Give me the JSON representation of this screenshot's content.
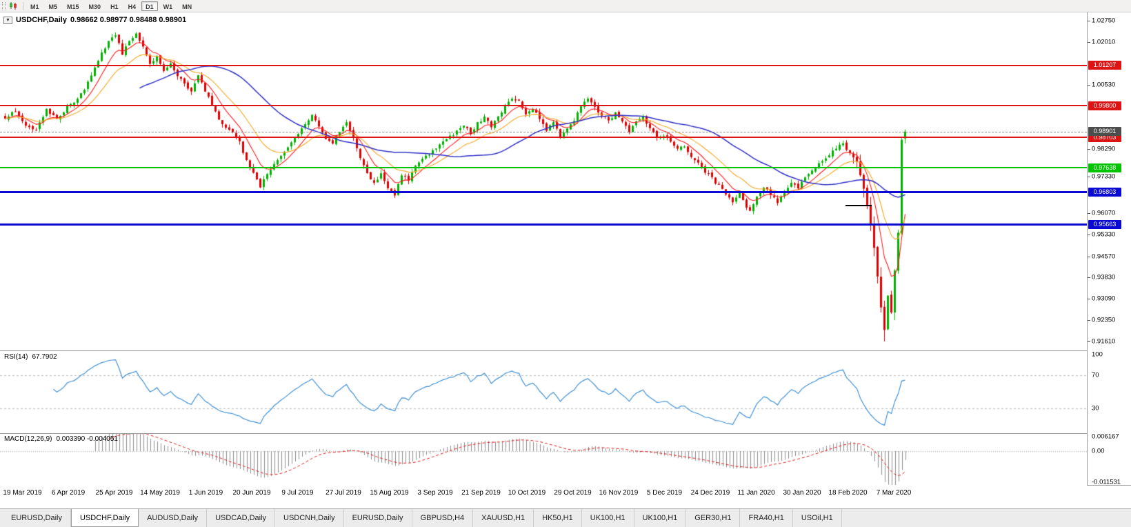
{
  "toolbar": {
    "timeframes": [
      "M1",
      "M5",
      "M15",
      "M30",
      "H1",
      "H4",
      "D1",
      "W1",
      "MN"
    ],
    "active": "D1",
    "icon": "chart-icon"
  },
  "chart_header": {
    "collapse_icon": "▼",
    "symbol": "USDCHF,Daily",
    "ohlc": "0.98662 0.98977 0.98488 0.98901"
  },
  "rsi_header": {
    "name": "RSI(14)",
    "value": "67.7902"
  },
  "macd_header": {
    "name": "MACD(12,26,9)",
    "values": "0.003390 -0.004051"
  },
  "chart_data": {
    "type": "candlestick",
    "symbol": "USDCHF",
    "period": "Daily",
    "title_ohlc": {
      "open": 0.98662,
      "high": 0.98977,
      "low": 0.98488,
      "close": 0.98901
    },
    "n": 262,
    "price_range": {
      "min": 0.913,
      "max": 1.0304
    },
    "extremes": {
      "high": 1.0235,
      "low": 0.9161
    },
    "colors": {
      "up": "#00b200",
      "down": "#e00000",
      "ma_fast": "#ff1a1a",
      "ma_mid": "#f5a623",
      "ma_slow": "#2e2ec8"
    },
    "axis_ticks": [
      "1.02750",
      "1.02010",
      "1.00530",
      "0.98290",
      "0.97330",
      "0.96070",
      "0.95330",
      "0.94570",
      "0.93830",
      "0.93090",
      "0.92350",
      "0.91610"
    ],
    "horizontal_levels": [
      {
        "price": 1.01207,
        "label": "1.01207",
        "color": "#dc1414",
        "thickness": 2,
        "kind": "resistance"
      },
      {
        "price": 0.998,
        "label": "0.99800",
        "color": "#dc1414",
        "thickness": 2,
        "kind": "resistance"
      },
      {
        "price": 0.98703,
        "label": "0.98703",
        "color": "#dc1414",
        "thickness": 2,
        "kind": "resistance"
      },
      {
        "price": 0.97638,
        "label": "0.97638",
        "color": "#00c400",
        "thickness": 2,
        "kind": "support"
      },
      {
        "price": 0.96803,
        "label": "0.96803",
        "color": "#0a0ad2",
        "thickness": 3,
        "kind": "support"
      },
      {
        "price": 0.95663,
        "label": "0.95663",
        "color": "#0a0ad2",
        "thickness": 3,
        "kind": "support"
      }
    ],
    "current_price": {
      "price": 0.98901,
      "label": "0.98901",
      "color": "#4d4d4d"
    },
    "drawn_segment": {
      "price": 0.9633,
      "i1": 244,
      "i2": 251,
      "color": "#000000"
    },
    "moving_averages": [
      {
        "type": "ema",
        "period": 8
      },
      {
        "type": "ema",
        "period": 18
      },
      {
        "type": "sma",
        "period": 40
      }
    ],
    "rsi": {
      "period": 14,
      "current": 67.7902,
      "overbought": 70,
      "oversold": 30,
      "scale_labels": [
        "100",
        "70",
        "30"
      ],
      "color": "#3f8fd4"
    },
    "macd": {
      "params": "12,26,9",
      "main": 0.00339,
      "signal": -0.004051,
      "scale_max": 0.006167,
      "scale_min": -0.011531,
      "scale_labels": [
        "0.006167",
        "0.00",
        "-0.011531"
      ],
      "hist_color": "#8c8c8c",
      "signal_color": "#dc1414"
    },
    "dates": [
      "19 Mar 2019",
      "6 Apr 2019",
      "25 Apr 2019",
      "14 May 2019",
      "1 Jun 2019",
      "20 Jun 2019",
      "9 Jul 2019",
      "27 Jul 2019",
      "15 Aug 2019",
      "3 Sep 2019",
      "21 Sep 2019",
      "10 Oct 2019",
      "29 Oct 2019",
      "16 Nov 2019",
      "5 Dec 2019",
      "24 Dec 2019",
      "11 Jan 2020",
      "30 Jan 2020",
      "18 Feb 2020",
      "7 Mar 2020"
    ],
    "close_anchors": [
      [
        0,
        0.9935
      ],
      [
        3,
        0.9962
      ],
      [
        6,
        0.9915
      ],
      [
        9,
        0.9893
      ],
      [
        12,
        0.9968
      ],
      [
        15,
        0.9932
      ],
      [
        18,
        0.9975
      ],
      [
        21,
        1.0005
      ],
      [
        24,
        1.0058
      ],
      [
        27,
        1.0138
      ],
      [
        30,
        1.0205
      ],
      [
        32,
        1.0228
      ],
      [
        34,
        1.016
      ],
      [
        36,
        1.0205
      ],
      [
        38,
        1.0228
      ],
      [
        40,
        1.0182
      ],
      [
        42,
        1.012
      ],
      [
        44,
        1.0148
      ],
      [
        46,
        1.0095
      ],
      [
        48,
        1.0128
      ],
      [
        51,
        1.0068
      ],
      [
        54,
        1.0032
      ],
      [
        56,
        1.0088
      ],
      [
        58,
        1.003
      ],
      [
        60,
        0.9988
      ],
      [
        62,
        0.9928
      ],
      [
        64,
        0.9898
      ],
      [
        66,
        0.9888
      ],
      [
        68,
        0.9852
      ],
      [
        70,
        0.979
      ],
      [
        72,
        0.9748
      ],
      [
        74,
        0.97
      ],
      [
        76,
        0.9745
      ],
      [
        78,
        0.9775
      ],
      [
        81,
        0.982
      ],
      [
        84,
        0.9872
      ],
      [
        87,
        0.9918
      ],
      [
        89,
        0.9948
      ],
      [
        91,
        0.9905
      ],
      [
        93,
        0.9868
      ],
      [
        95,
        0.9852
      ],
      [
        97,
        0.9892
      ],
      [
        99,
        0.9922
      ],
      [
        101,
        0.9868
      ],
      [
        103,
        0.9798
      ],
      [
        105,
        0.9742
      ],
      [
        107,
        0.9712
      ],
      [
        109,
        0.9742
      ],
      [
        111,
        0.969
      ],
      [
        113,
        0.9668
      ],
      [
        115,
        0.9742
      ],
      [
        117,
        0.9722
      ],
      [
        119,
        0.9772
      ],
      [
        121,
        0.9792
      ],
      [
        124,
        0.9822
      ],
      [
        127,
        0.9856
      ],
      [
        130,
        0.9882
      ],
      [
        133,
        0.9912
      ],
      [
        135,
        0.9882
      ],
      [
        137,
        0.9922
      ],
      [
        139,
        0.9938
      ],
      [
        141,
        0.9908
      ],
      [
        143,
        0.9938
      ],
      [
        145,
        0.9978
      ],
      [
        147,
        1.0002
      ],
      [
        149,
        0.9992
      ],
      [
        151,
        0.9952
      ],
      [
        153,
        0.9968
      ],
      [
        155,
        0.9932
      ],
      [
        157,
        0.9892
      ],
      [
        159,
        0.9922
      ],
      [
        161,
        0.9872
      ],
      [
        163,
        0.9898
      ],
      [
        165,
        0.9928
      ],
      [
        167,
        0.9978
      ],
      [
        169,
        1.0
      ],
      [
        171,
        0.9972
      ],
      [
        173,
        0.9948
      ],
      [
        175,
        0.9925
      ],
      [
        177,
        0.9952
      ],
      [
        179,
        0.9922
      ],
      [
        181,
        0.9892
      ],
      [
        183,
        0.9922
      ],
      [
        185,
        0.994
      ],
      [
        187,
        0.9905
      ],
      [
        189,
        0.9872
      ],
      [
        191,
        0.9878
      ],
      [
        193,
        0.9858
      ],
      [
        195,
        0.9828
      ],
      [
        197,
        0.9842
      ],
      [
        199,
        0.98
      ],
      [
        201,
        0.9782
      ],
      [
        203,
        0.9752
      ],
      [
        205,
        0.9728
      ],
      [
        207,
        0.97
      ],
      [
        209,
        0.9672
      ],
      [
        211,
        0.9648
      ],
      [
        213,
        0.968
      ],
      [
        215,
        0.9628
      ],
      [
        216,
        0.9615
      ],
      [
        218,
        0.9662
      ],
      [
        220,
        0.97
      ],
      [
        222,
        0.9672
      ],
      [
        224,
        0.9645
      ],
      [
        226,
        0.9682
      ],
      [
        228,
        0.9712
      ],
      [
        230,
        0.9692
      ],
      [
        232,
        0.9732
      ],
      [
        235,
        0.9762
      ],
      [
        238,
        0.9802
      ],
      [
        241,
        0.9832
      ],
      [
        243,
        0.9848
      ],
      [
        245,
        0.9812
      ],
      [
        247,
        0.9782
      ],
      [
        248,
        0.9742
      ],
      [
        249,
        0.9692
      ],
      [
        250,
        0.9632
      ],
      [
        251,
        0.9562
      ],
      [
        252,
        0.9482
      ],
      [
        253,
        0.9382
      ],
      [
        254,
        0.9282
      ],
      [
        255,
        0.9205
      ],
      [
        256,
        0.9325
      ],
      [
        257,
        0.9262
      ],
      [
        258,
        0.9405
      ],
      [
        259,
        0.9535
      ],
      [
        260,
        0.9866
      ],
      [
        261,
        0.98901
      ]
    ]
  },
  "tabs": {
    "items": [
      {
        "label": "EURUSD,Daily",
        "active": false
      },
      {
        "label": "USDCHF,Daily",
        "active": true
      },
      {
        "label": "AUDUSD,Daily",
        "active": false
      },
      {
        "label": "USDCAD,Daily",
        "active": false
      },
      {
        "label": "USDCNH,Daily",
        "active": false
      },
      {
        "label": "EURUSD,Daily",
        "active": false
      },
      {
        "label": "GBPUSD,H4",
        "active": false
      },
      {
        "label": "XAUUSD,H1",
        "active": false
      },
      {
        "label": "HK50,H1",
        "active": false
      },
      {
        "label": "UK100,H1",
        "active": false
      },
      {
        "label": "UK100,H1",
        "active": false
      },
      {
        "label": "GER30,H1",
        "active": false
      },
      {
        "label": "FRA40,H1",
        "active": false
      },
      {
        "label": "USOil,H1",
        "active": false
      }
    ]
  }
}
